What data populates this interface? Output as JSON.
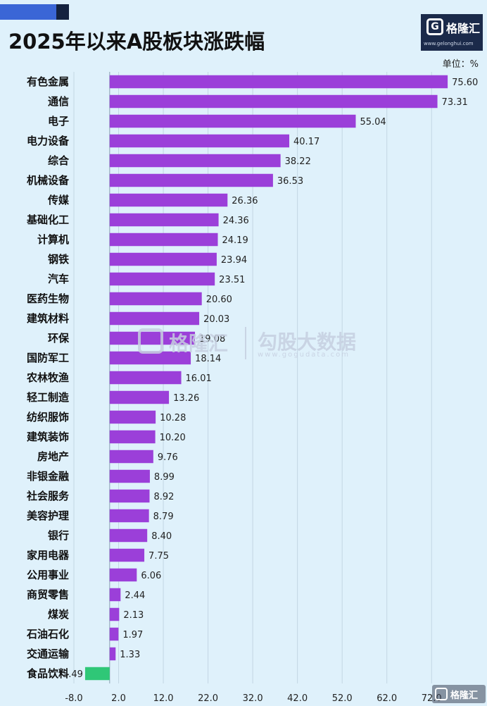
{
  "header": {
    "title": "2025年以来A股板块涨跌幅",
    "unit": "单位：%"
  },
  "logo": {
    "name": "格隆汇",
    "mark": "G",
    "url": "www.gelonghui.com"
  },
  "watermark": {
    "name": "格隆汇",
    "brand": "勾股大数据",
    "url": "www.gogudata.com"
  },
  "corner_logo": {
    "name": "格隆汇"
  },
  "colors": {
    "positive_bar": "#9b3fd9",
    "negative_bar": "#2fc777",
    "background": "#dff1fb"
  },
  "chart_data": {
    "type": "bar",
    "orientation": "horizontal",
    "title": "2025年以来A股板块涨跌幅",
    "xlabel": "",
    "ylabel": "",
    "unit": "单位：%",
    "xlim": [
      -8.0,
      77.0
    ],
    "xticks": [
      "-8.0",
      "2.0",
      "12.0",
      "22.0",
      "32.0",
      "42.0",
      "52.0",
      "62.0",
      "72.0"
    ],
    "xtick_values": [
      -8,
      2,
      12,
      22,
      32,
      42,
      52,
      62,
      72
    ],
    "grid": true,
    "categories": [
      "有色金属",
      "通信",
      "电子",
      "电力设备",
      "综合",
      "机械设备",
      "传媒",
      "基础化工",
      "计算机",
      "钢铁",
      "汽车",
      "医药生物",
      "建筑材料",
      "环保",
      "国防军工",
      "农林牧渔",
      "轻工制造",
      "纺织服饰",
      "建筑装饰",
      "房地产",
      "非银金融",
      "社会服务",
      "美容护理",
      "银行",
      "家用电器",
      "公用事业",
      "商贸零售",
      "煤炭",
      "石油石化",
      "交通运输",
      "食品饮料"
    ],
    "values": [
      75.6,
      73.31,
      55.04,
      40.17,
      38.22,
      36.53,
      26.36,
      24.36,
      24.19,
      23.94,
      23.51,
      20.6,
      20.03,
      19.08,
      18.14,
      16.01,
      13.26,
      10.28,
      10.2,
      9.76,
      8.99,
      8.92,
      8.79,
      8.4,
      7.75,
      6.06,
      2.44,
      2.13,
      1.97,
      1.33,
      -5.49
    ],
    "labels": [
      "75.60",
      "73.31",
      "55.04",
      "40.17",
      "38.22",
      "36.53",
      "26.36",
      "24.36",
      "24.19",
      "23.94",
      "23.51",
      "20.60",
      "20.03",
      "19.08",
      "18.14",
      "16.01",
      "13.26",
      "10.28",
      "10.20",
      "9.76",
      "8.99",
      "8.92",
      "8.79",
      "8.40",
      "7.75",
      "6.06",
      "2.44",
      "2.13",
      "1.97",
      "1.33",
      "-5.49"
    ]
  }
}
